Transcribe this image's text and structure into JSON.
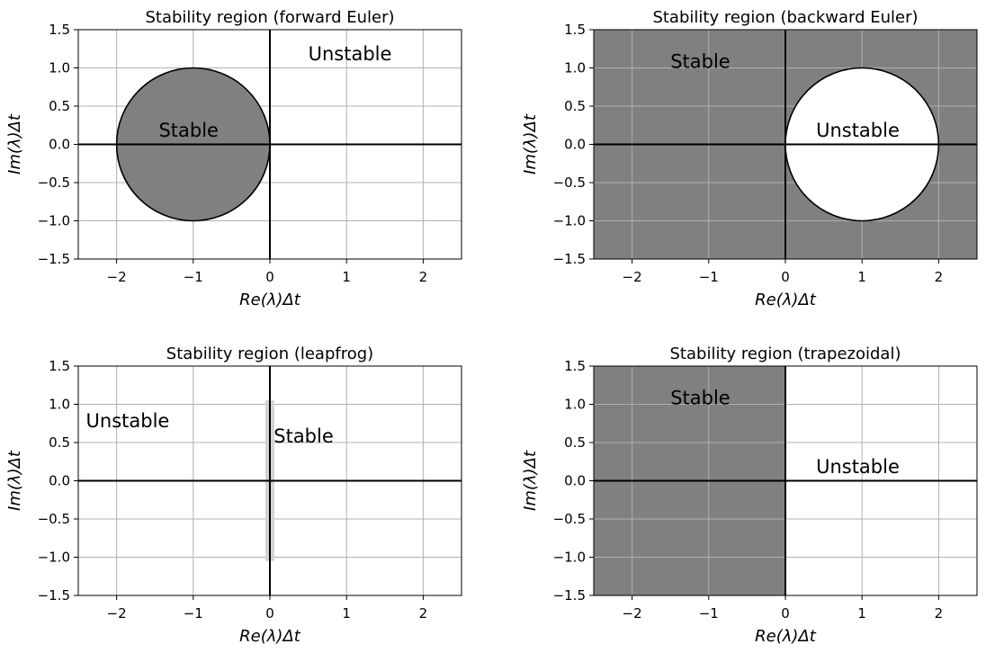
{
  "figure": {
    "xlabel_main": "Re(λ)",
    "xlabel_suffix": "Δt",
    "ylabel_main": "Im(λ)",
    "ylabel_suffix": "Δt",
    "fill_color": "#808080",
    "segment_color": "#d3d3d3",
    "grid_color": "#b0b0b0"
  },
  "chart_data": [
    {
      "type": "area",
      "title": "Stability region (forward Euler)",
      "xlim": [
        -2.5,
        2.5
      ],
      "ylim": [
        -1.5,
        1.5
      ],
      "xticks": [
        -2,
        -1,
        0,
        1,
        2
      ],
      "yticks": [
        -1.5,
        -1.0,
        -0.5,
        0.0,
        0.5,
        1.0,
        1.5
      ],
      "xtick_labels": [
        "−2",
        "−1",
        "0",
        "1",
        "2"
      ],
      "ytick_labels": [
        "−1.5",
        "−1.0",
        "−0.5",
        "0.0",
        "0.5",
        "1.0",
        "1.5"
      ],
      "grid": true,
      "region": {
        "shape": "disk",
        "center": [
          -1,
          0
        ],
        "radius": 1,
        "inside": "shaded"
      },
      "annotations": [
        {
          "text": "Stable",
          "x": -1.45,
          "y": 0.1
        },
        {
          "text": "Unstable",
          "x": 0.5,
          "y": 1.1
        }
      ]
    },
    {
      "type": "area",
      "title": "Stability region (backward Euler)",
      "xlim": [
        -2.5,
        2.5
      ],
      "ylim": [
        -1.5,
        1.5
      ],
      "xticks": [
        -2,
        -1,
        0,
        1,
        2
      ],
      "yticks": [
        -1.5,
        -1.0,
        -0.5,
        0.0,
        0.5,
        1.0,
        1.5
      ],
      "xtick_labels": [
        "−2",
        "−1",
        "0",
        "1",
        "2"
      ],
      "ytick_labels": [
        "−1.5",
        "−1.0",
        "−0.5",
        "0.0",
        "0.5",
        "1.0",
        "1.5"
      ],
      "grid": true,
      "region": {
        "shape": "disk",
        "center": [
          1,
          0
        ],
        "radius": 1,
        "inside": "white",
        "outside": "shaded"
      },
      "annotations": [
        {
          "text": "Stable",
          "x": -1.5,
          "y": 1.0
        },
        {
          "text": "Unstable",
          "x": 0.4,
          "y": 0.1
        }
      ]
    },
    {
      "type": "line",
      "title": "Stability region (leapfrog)",
      "xlim": [
        -2.5,
        2.5
      ],
      "ylim": [
        -1.5,
        1.5
      ],
      "xticks": [
        -2,
        -1,
        0,
        1,
        2
      ],
      "yticks": [
        -1.5,
        -1.0,
        -0.5,
        0.0,
        0.5,
        1.0,
        1.5
      ],
      "xtick_labels": [
        "−2",
        "−1",
        "0",
        "1",
        "2"
      ],
      "ytick_labels": [
        "−1.5",
        "−1.0",
        "−0.5",
        "0.0",
        "0.5",
        "1.0",
        "1.5"
      ],
      "grid": true,
      "region": {
        "shape": "segment",
        "x": 0,
        "y_range": [
          -1.05,
          1.05
        ]
      },
      "annotations": [
        {
          "text": "Unstable",
          "x": -2.4,
          "y": 0.7
        },
        {
          "text": "Stable",
          "x": 0.05,
          "y": 0.5
        }
      ]
    },
    {
      "type": "area",
      "title": "Stability region (trapezoidal)",
      "xlim": [
        -2.5,
        2.5
      ],
      "ylim": [
        -1.5,
        1.5
      ],
      "xticks": [
        -2,
        -1,
        0,
        1,
        2
      ],
      "yticks": [
        -1.5,
        -1.0,
        -0.5,
        0.0,
        0.5,
        1.0,
        1.5
      ],
      "xtick_labels": [
        "−2",
        "−1",
        "0",
        "1",
        "2"
      ],
      "ytick_labels": [
        "−1.5",
        "−1.0",
        "−0.5",
        "0.0",
        "0.5",
        "1.0",
        "1.5"
      ],
      "grid": true,
      "region": {
        "shape": "halfplane",
        "re_max": 0,
        "inside": "shaded"
      },
      "annotations": [
        {
          "text": "Stable",
          "x": -1.5,
          "y": 1.0
        },
        {
          "text": "Unstable",
          "x": 0.4,
          "y": 0.1
        }
      ]
    }
  ]
}
